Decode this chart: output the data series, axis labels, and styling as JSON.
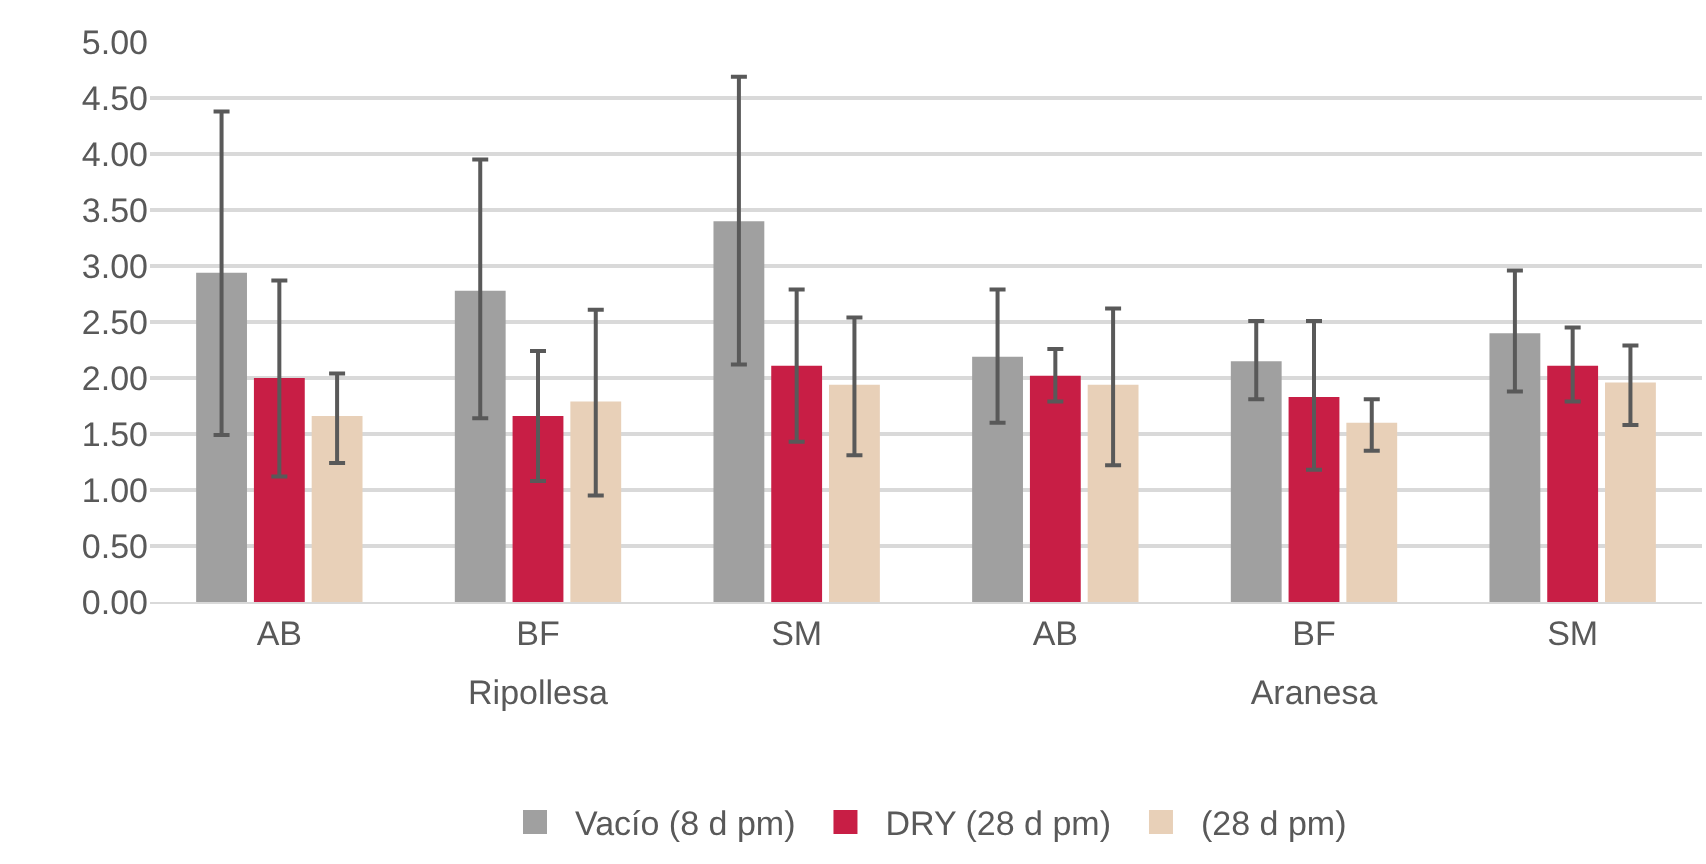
{
  "chart_data": [
    {
      "type": "bar",
      "xlabel": "Ripollesa",
      "categories": [
        "AB",
        "BF",
        "SM"
      ],
      "ylim": [
        0,
        5
      ],
      "yticks": [
        {
          "value": 0,
          "label": "0.00"
        },
        {
          "value": 0.5,
          "label": "0.50"
        },
        {
          "value": 1,
          "label": "1.00"
        },
        {
          "value": 1.5,
          "label": "1.50"
        },
        {
          "value": 2,
          "label": "2.00"
        },
        {
          "value": 2.5,
          "label": "2.50"
        },
        {
          "value": 3,
          "label": "3.00"
        },
        {
          "value": 3.5,
          "label": "3.50"
        },
        {
          "value": 4,
          "label": "4.00"
        },
        {
          "value": 4.5,
          "label": "4.50"
        },
        {
          "value": 5,
          "label": "5.00"
        }
      ],
      "grid": "y",
      "legend": "bottom",
      "series": [
        {
          "name": "Vacío (8 d pm)",
          "color": "#a0a0a0",
          "values": [
            2.94,
            2.78,
            3.4
          ],
          "errors": [
            [
              1.49,
              4.38
            ],
            [
              1.64,
              3.95
            ],
            [
              2.12,
              4.69
            ]
          ]
        },
        {
          "name": "DRY (28 d pm)",
          "color": "#c81e45",
          "values": [
            2.0,
            1.66,
            2.11
          ],
          "errors": [
            [
              1.12,
              2.87
            ],
            [
              1.08,
              2.24
            ],
            [
              1.43,
              2.79
            ]
          ]
        },
        {
          "name": "(28 d pm)",
          "color": "#e8d0b8",
          "values": [
            1.66,
            1.79,
            1.94
          ],
          "errors": [
            [
              1.24,
              2.04
            ],
            [
              0.95,
              2.61
            ],
            [
              1.31,
              2.54
            ]
          ]
        }
      ]
    },
    {
      "type": "bar",
      "xlabel": "Aranesa",
      "categories": [
        "AB",
        "BF",
        "SM"
      ],
      "ylim": [
        0,
        5
      ],
      "yticks": [
        0,
        0.5,
        1,
        1.5,
        2,
        2.5,
        3,
        3.5,
        4,
        4.5,
        5
      ],
      "grid": "y",
      "tick_labels": "x",
      "series": [
        {
          "color": "#a0a0a0",
          "values": [
            2.19,
            2.15,
            2.4
          ],
          "errors": [
            [
              1.6,
              2.79
            ],
            [
              1.81,
              2.51
            ],
            [
              1.88,
              2.96
            ]
          ]
        },
        {
          "color": "#c81e45",
          "values": [
            2.02,
            1.83,
            2.11
          ],
          "errors": [
            [
              1.79,
              2.26
            ],
            [
              1.18,
              2.51
            ],
            [
              1.79,
              2.45
            ]
          ]
        },
        {
          "color": "#e8d0b8",
          "values": [
            1.94,
            1.6,
            1.96
          ],
          "errors": [
            [
              1.22,
              2.62
            ],
            [
              1.35,
              1.81
            ],
            [
              1.58,
              2.29
            ]
          ]
        }
      ]
    }
  ]
}
